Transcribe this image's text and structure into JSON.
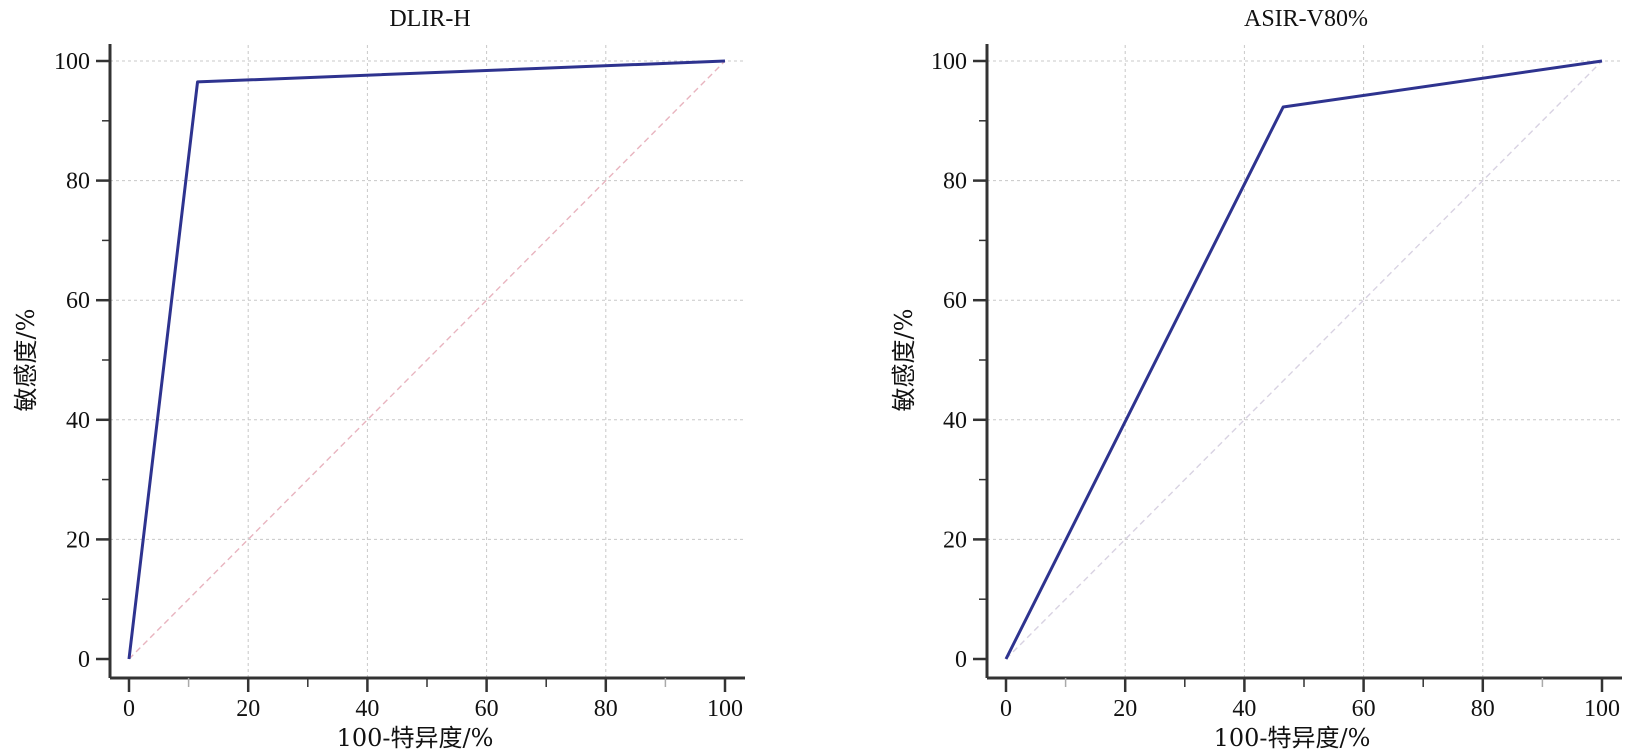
{
  "chart_data": [
    {
      "type": "line",
      "title": "DLIR-H",
      "xlabel": "100-特异度/%",
      "ylabel": "敏感度/%",
      "xlim": [
        0,
        100
      ],
      "ylim": [
        0,
        100
      ],
      "xticks": [
        "0",
        "20",
        "40",
        "60",
        "80",
        "100"
      ],
      "yticks": [
        "0",
        "20",
        "40",
        "60",
        "80",
        "100"
      ],
      "grid": true,
      "series": [
        {
          "color": "#2e338f",
          "x": [
            0,
            0,
            11.5,
            100
          ],
          "y": [
            0,
            0,
            96.5,
            100
          ]
        }
      ],
      "reference_line": {
        "color": "#e8b4bf",
        "x": [
          0,
          100
        ],
        "y": [
          0,
          100
        ]
      }
    },
    {
      "type": "line",
      "title": "ASIR-V80%",
      "xlabel": "100-特异度/%",
      "ylabel": "敏感度/%",
      "xlim": [
        0,
        100
      ],
      "ylim": [
        0,
        100
      ],
      "xticks": [
        "0",
        "20",
        "40",
        "60",
        "80",
        "100"
      ],
      "yticks": [
        "0",
        "20",
        "40",
        "60",
        "80",
        "100"
      ],
      "grid": true,
      "series": [
        {
          "color": "#2e338f",
          "x": [
            0,
            46.5,
            100
          ],
          "y": [
            0,
            92.3,
            100
          ]
        }
      ],
      "reference_line": {
        "color": "#d8d2e2",
        "x": [
          0,
          100
        ],
        "y": [
          0,
          100
        ]
      }
    }
  ]
}
